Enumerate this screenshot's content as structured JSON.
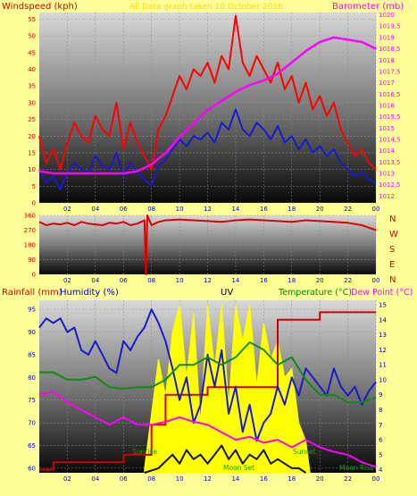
{
  "colors": {
    "background": "#ffff99",
    "windspeed": "#e00000",
    "gust": "#ff0000",
    "avg_wind": "#1a1acc",
    "barometer": "#ff00ff",
    "direction": "#e00000",
    "rainfall": "#cc0000",
    "humidity": "#1a1acc",
    "uv": "#ffff00",
    "temperature": "#138a13",
    "dewpoint": "#ff00ff",
    "solar": "#111111",
    "label_red": "#d40000",
    "label_magenta": "#ff00ff",
    "label_blue": "#0000cc",
    "label_green": "#008800"
  },
  "charts": {
    "wind": {
      "left_title": "Windspeed (kph)",
      "center_title": "All Data graph taken 10 October 2016",
      "right_title": "Barometer (mb)"
    },
    "direction": {
      "compass": [
        "N",
        "W",
        "S",
        "E",
        "N"
      ]
    },
    "lower": {
      "rainfall_title": "Rainfall (mm)",
      "humidity_title": "Humidity (%)",
      "uv_title": "UV",
      "temperature_title": "Temperature (°C)",
      "dewpoint_title": "Dew Point (°C)",
      "annotations": {
        "sunrise": "Sunrise",
        "moon_set": "Moon Set",
        "sunset": "Sunset",
        "moon_rise": "Moon Rise"
      }
    }
  },
  "chart_data": [
    {
      "type": "line",
      "x_ticks": [
        "02",
        "04",
        "06",
        "08",
        "10",
        "12",
        "14",
        "16",
        "18",
        "20",
        "22",
        "00"
      ],
      "y_ticks_left": [
        "0",
        "5",
        "10",
        "15",
        "20",
        "25",
        "30",
        "35",
        "40",
        "45",
        "50",
        "55"
      ],
      "y_ticks_right": [
        "1012",
        "1012,5",
        "1013",
        "1013,5",
        "1014",
        "1014,5",
        "1015",
        "1015,5",
        "1016",
        "1016,5",
        "1017",
        "1017,5",
        "1018",
        "1018,5",
        "1019",
        "1019,5",
        "1020"
      ],
      "ylim_left": [
        0,
        57
      ],
      "ylim_right": [
        1011.7,
        1020.1
      ],
      "xlim": [
        0,
        24
      ],
      "series": [
        {
          "name": "Windspeed (kph)",
          "axis": "left",
          "color_key": "gust",
          "x": [
            0,
            0.5,
            1,
            1.5,
            2,
            2.5,
            3,
            3.5,
            4,
            4.5,
            5,
            5.5,
            6,
            6.5,
            7,
            7.5,
            8,
            8.5,
            9,
            9.5,
            10,
            10.5,
            11,
            11.5,
            12,
            12.5,
            13,
            13.5,
            14,
            14.5,
            15,
            15.5,
            16,
            16.5,
            17,
            17.5,
            18,
            18.5,
            19,
            19.5,
            20,
            20.5,
            21,
            21.5,
            22,
            22.5,
            23,
            23.5,
            24
          ],
          "values": [
            20,
            12,
            16,
            10,
            18,
            24,
            20,
            18,
            26,
            22,
            20,
            30,
            16,
            24,
            18,
            14,
            10,
            22,
            26,
            32,
            38,
            34,
            40,
            38,
            42,
            36,
            44,
            40,
            56,
            42,
            38,
            44,
            40,
            36,
            42,
            34,
            38,
            30,
            36,
            28,
            32,
            26,
            30,
            22,
            18,
            14,
            16,
            12,
            10
          ]
        },
        {
          "name": "Average wind",
          "axis": "left",
          "color_key": "avg_wind",
          "x": [
            0,
            0.5,
            1,
            1.5,
            2,
            2.5,
            3,
            3.5,
            4,
            4.5,
            5,
            5.5,
            6,
            6.5,
            7,
            7.5,
            8,
            8.5,
            9,
            9.5,
            10,
            10.5,
            11,
            11.5,
            12,
            12.5,
            13,
            13.5,
            14,
            14.5,
            15,
            15.5,
            16,
            16.5,
            17,
            17.5,
            18,
            18.5,
            19,
            19.5,
            20,
            20.5,
            21,
            21.5,
            22,
            22.5,
            23,
            23.5,
            24
          ],
          "values": [
            10,
            6,
            8,
            4,
            9,
            12,
            10,
            9,
            14,
            11,
            10,
            15,
            8,
            12,
            9,
            7,
            5,
            11,
            13,
            16,
            19,
            17,
            20,
            19,
            21,
            18,
            24,
            22,
            28,
            22,
            20,
            24,
            22,
            19,
            23,
            18,
            20,
            16,
            19,
            15,
            17,
            14,
            16,
            12,
            10,
            8,
            9,
            7,
            6
          ]
        },
        {
          "name": "Barometer (mb)",
          "axis": "right",
          "color_key": "barometer",
          "x": [
            0,
            1,
            2,
            3,
            4,
            5,
            6,
            7,
            8,
            9,
            10,
            11,
            12,
            13,
            14,
            15,
            16,
            17,
            18,
            19,
            20,
            21,
            22,
            23,
            24
          ],
          "values": [
            1013.1,
            1013.0,
            1013.0,
            1013.0,
            1013.0,
            1013.0,
            1013.0,
            1013.1,
            1013.4,
            1013.9,
            1014.6,
            1015.2,
            1015.8,
            1016.2,
            1016.6,
            1016.9,
            1017.1,
            1017.4,
            1017.9,
            1018.4,
            1018.8,
            1019.0,
            1018.9,
            1018.8,
            1018.5
          ]
        }
      ]
    },
    {
      "type": "line",
      "x_ticks": [
        "02",
        "04",
        "06",
        "08",
        "10",
        "12",
        "14",
        "16",
        "18",
        "20",
        "22",
        "00"
      ],
      "y_ticks_left": [
        "0",
        "90",
        "180",
        "270",
        "360"
      ],
      "ylim_left": [
        0,
        360
      ],
      "xlim": [
        0,
        24
      ],
      "series": [
        {
          "name": "Wind direction",
          "axis": "left",
          "color_key": "direction",
          "x": [
            0,
            0.5,
            1,
            1.5,
            2,
            2.5,
            3,
            3.5,
            4,
            4.5,
            5,
            5.5,
            6,
            6.5,
            7,
            7.5,
            7.6,
            7.7,
            7.8,
            8,
            8.5,
            9,
            10,
            11,
            12,
            13,
            14,
            15,
            16,
            17,
            18,
            19,
            20,
            21,
            22,
            23,
            24
          ],
          "values": [
            320,
            300,
            310,
            305,
            315,
            300,
            320,
            310,
            305,
            300,
            315,
            310,
            320,
            300,
            310,
            330,
            0,
            360,
            340,
            300,
            320,
            330,
            335,
            330,
            325,
            320,
            330,
            335,
            330,
            325,
            320,
            330,
            325,
            320,
            315,
            300,
            270
          ]
        }
      ]
    },
    {
      "type": "line",
      "x_ticks": [
        "02",
        "04",
        "06",
        "08",
        "10",
        "12",
        "14",
        "16",
        "18",
        "20",
        "22",
        "00"
      ],
      "y_ticks_left": [
        "60",
        "65",
        "70",
        "75",
        "80",
        "85",
        "90",
        "95"
      ],
      "y_ticks_right": [
        "4",
        "5",
        "6",
        "7",
        "8",
        "9",
        "10",
        "11",
        "12",
        "13",
        "14",
        "15"
      ],
      "ylim_left": [
        59,
        97
      ],
      "ylim_right": [
        3.8,
        15.3
      ],
      "xlim": [
        0,
        24
      ],
      "series": [
        {
          "name": "Rainfall (mm)",
          "axis": "right",
          "color_key": "rainfall",
          "step": true,
          "x": [
            0,
            1,
            4,
            6,
            7,
            8,
            9,
            10,
            12,
            15,
            16,
            17,
            18,
            19,
            20,
            21,
            22,
            23,
            24
          ],
          "values": [
            4,
            4.5,
            4.5,
            5,
            5,
            7,
            9,
            9,
            9.5,
            9.5,
            9.5,
            14,
            14,
            14,
            14.5,
            14.5,
            14.5,
            14.5,
            14.5
          ]
        },
        {
          "name": "Humidity (%)",
          "axis": "left",
          "color_key": "humidity",
          "x": [
            0,
            0.5,
            1,
            1.5,
            2,
            2.5,
            3,
            3.5,
            4,
            4.5,
            5,
            5.5,
            6,
            6.5,
            7,
            7.5,
            8,
            8.5,
            9,
            9.5,
            10,
            10.5,
            11,
            11.5,
            12,
            12.5,
            13,
            13.5,
            14,
            14.5,
            15,
            15.5,
            16,
            16.5,
            17,
            17.5,
            18,
            18.5,
            19,
            19.5,
            20,
            20.5,
            21,
            21.5,
            22,
            22.5,
            23,
            23.5,
            24
          ],
          "values": [
            91,
            93,
            92,
            93,
            90,
            91,
            86,
            85,
            88,
            85,
            82,
            81,
            88,
            86,
            89,
            91,
            95,
            92,
            88,
            82,
            75,
            80,
            70,
            74,
            85,
            78,
            86,
            72,
            78,
            68,
            74,
            66,
            70,
            72,
            78,
            74,
            80,
            76,
            82,
            80,
            78,
            76,
            82,
            78,
            76,
            78,
            74,
            77,
            79
          ]
        },
        {
          "name": "Temperature (°C)",
          "axis": "right",
          "color_key": "temperature",
          "x": [
            0,
            1,
            2,
            3,
            4,
            5,
            6,
            7,
            8,
            9,
            10,
            11,
            12,
            13,
            14,
            15,
            16,
            17,
            18,
            19,
            20,
            21,
            22,
            23,
            24
          ],
          "values": [
            10.5,
            10.5,
            10,
            10,
            10.2,
            9.5,
            9.4,
            9.5,
            9.5,
            10,
            11,
            11,
            11.5,
            11,
            11.5,
            12.5,
            12,
            11,
            11.5,
            10,
            9,
            9,
            8.5,
            8.5,
            8.8
          ]
        },
        {
          "name": "Dew Point (°C)",
          "axis": "right",
          "color_key": "dewpoint",
          "x": [
            0,
            1,
            2,
            3,
            4,
            5,
            6,
            7,
            8,
            9,
            10,
            11,
            12,
            13,
            14,
            15,
            16,
            17,
            18,
            19,
            20,
            21,
            22,
            23,
            24
          ],
          "values": [
            9,
            9.2,
            8.5,
            8,
            7.5,
            7,
            7.5,
            7,
            7,
            7.2,
            7.5,
            7.2,
            7,
            6.5,
            6,
            6.2,
            5.8,
            6,
            5.5,
            6,
            5.5,
            5.2,
            5,
            4.5,
            4.2
          ]
        },
        {
          "name": "UV",
          "axis": "left",
          "color_key": "uv",
          "area": true,
          "x": [
            7.5,
            8,
            8.5,
            9,
            9.5,
            10,
            10.5,
            11,
            11.5,
            12,
            12.5,
            13,
            13.5,
            14,
            14.5,
            15,
            15.5,
            16,
            16.5,
            17,
            17.5,
            18,
            18.5,
            19,
            19.3
          ],
          "values": [
            60,
            72,
            84,
            76,
            90,
            96,
            80,
            94,
            70,
            96,
            82,
            96,
            74,
            96,
            88,
            96,
            78,
            92,
            84,
            88,
            80,
            82,
            70,
            66,
            59
          ]
        },
        {
          "name": "Solar",
          "axis": "left",
          "color_key": "solar",
          "x": [
            7.5,
            8.5,
            9.5,
            10,
            10.5,
            11,
            11.5,
            12,
            12.5,
            13,
            13.5,
            14,
            14.5,
            15,
            15.5,
            16,
            16.5,
            17,
            17.5,
            18,
            18.5,
            19
          ],
          "values": [
            59,
            60,
            63,
            61,
            64,
            62,
            63,
            61,
            63,
            65,
            62,
            64,
            61,
            63,
            62,
            64,
            61,
            62,
            61,
            60,
            60,
            59
          ]
        }
      ]
    }
  ]
}
